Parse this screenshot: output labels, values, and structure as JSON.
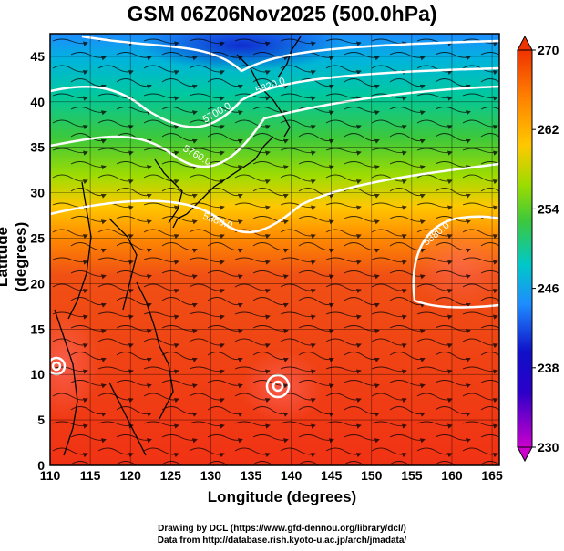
{
  "title": "GSM 06Z06Nov2025 (500.0hPa)",
  "x_axis_label": "Longitude (degrees)",
  "y_axis_label": "Latitude  (degrees)",
  "x_ticks": [
    "110",
    "115",
    "120",
    "125",
    "130",
    "135",
    "140",
    "145",
    "150",
    "155",
    "160",
    "165"
  ],
  "y_ticks": [
    "0",
    "5",
    "10",
    "15",
    "20",
    "25",
    "30",
    "35",
    "40",
    "45"
  ],
  "colorbar_ticks": [
    "230",
    "238",
    "246",
    "254",
    "262",
    "270"
  ],
  "colorbar_range": [
    230,
    270
  ],
  "colormap": [
    "#cc00cc",
    "#1010c8",
    "#1e8cff",
    "#00c8c8",
    "#3cc83c",
    "#c8dc00",
    "#ff9600",
    "#f03200"
  ],
  "contour_labels": [
    "5820.0",
    "5700.0",
    "5760.0",
    "5880.0",
    "5880.0"
  ],
  "credit_line_1": "Drawing by DCL (https://www.gfd-dennou.org/library/dcl/)",
  "credit_line_2": "Data from http://database.rish.kyoto-u.ac.jp/arch/jmadata/"
}
